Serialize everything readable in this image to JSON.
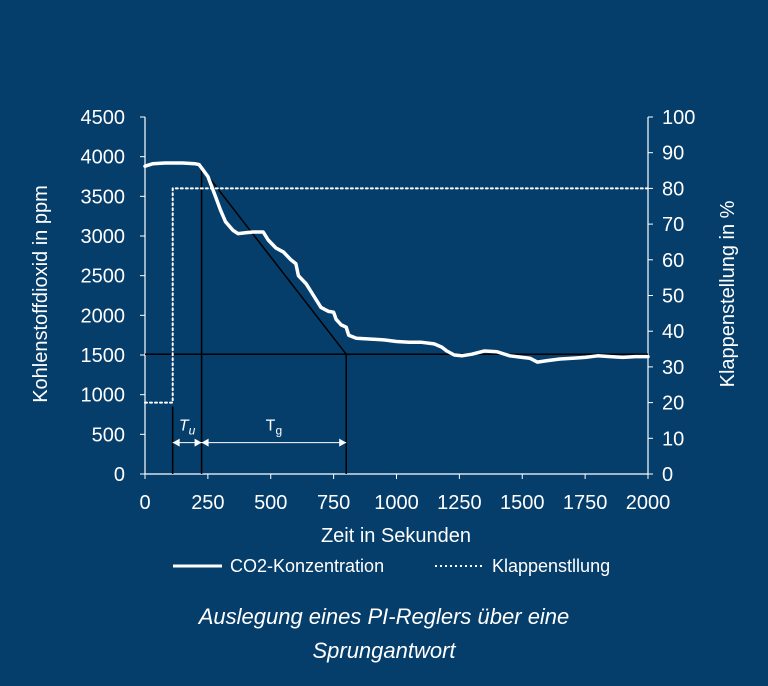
{
  "chart_data": {
    "type": "line",
    "xlabel": "Zeit in Sekunden",
    "ylabel": "Kohlenstoffdioxid in ppm",
    "y2label": "Klappenstellung in %",
    "xlim": [
      0,
      2000
    ],
    "ylim": [
      0,
      4500
    ],
    "y2lim": [
      0,
      100
    ],
    "xticks": [
      "0",
      "250",
      "500",
      "750",
      "1000",
      "1250",
      "1500",
      "1750",
      "2000"
    ],
    "yticks": [
      "0",
      "500",
      "1000",
      "1500",
      "2000",
      "2500",
      "3000",
      "3500",
      "4000",
      "4500"
    ],
    "y2ticks": [
      "0",
      "10",
      "20",
      "30",
      "40",
      "50",
      "60",
      "70",
      "80",
      "90",
      "100"
    ],
    "grid": false,
    "legend_position": "bottom",
    "series": [
      {
        "name": "CO2-Konzentration",
        "axis": "left",
        "style": "solid",
        "points": [
          [
            0,
            3880
          ],
          [
            30,
            3910
          ],
          [
            80,
            3920
          ],
          [
            150,
            3920
          ],
          [
            200,
            3910
          ],
          [
            215,
            3900
          ],
          [
            250,
            3750
          ],
          [
            280,
            3500
          ],
          [
            300,
            3330
          ],
          [
            320,
            3180
          ],
          [
            350,
            3070
          ],
          [
            370,
            3030
          ],
          [
            400,
            3040
          ],
          [
            430,
            3050
          ],
          [
            470,
            3050
          ],
          [
            490,
            2950
          ],
          [
            520,
            2850
          ],
          [
            550,
            2800
          ],
          [
            580,
            2700
          ],
          [
            600,
            2650
          ],
          [
            610,
            2500
          ],
          [
            640,
            2400
          ],
          [
            660,
            2300
          ],
          [
            680,
            2200
          ],
          [
            700,
            2100
          ],
          [
            730,
            2050
          ],
          [
            750,
            2040
          ],
          [
            760,
            1950
          ],
          [
            780,
            1880
          ],
          [
            800,
            1850
          ],
          [
            810,
            1750
          ],
          [
            840,
            1710
          ],
          [
            900,
            1700
          ],
          [
            950,
            1690
          ],
          [
            1000,
            1670
          ],
          [
            1050,
            1660
          ],
          [
            1100,
            1660
          ],
          [
            1150,
            1640
          ],
          [
            1180,
            1600
          ],
          [
            1200,
            1550
          ],
          [
            1230,
            1500
          ],
          [
            1260,
            1490
          ],
          [
            1300,
            1510
          ],
          [
            1350,
            1550
          ],
          [
            1400,
            1540
          ],
          [
            1450,
            1490
          ],
          [
            1500,
            1470
          ],
          [
            1530,
            1460
          ],
          [
            1560,
            1410
          ],
          [
            1600,
            1430
          ],
          [
            1650,
            1450
          ],
          [
            1700,
            1460
          ],
          [
            1750,
            1470
          ],
          [
            1800,
            1490
          ],
          [
            1850,
            1480
          ],
          [
            1900,
            1470
          ],
          [
            1950,
            1480
          ],
          [
            2000,
            1480
          ]
        ]
      },
      {
        "name": "Klappenstllung",
        "axis": "right",
        "style": "dotted",
        "points": [
          [
            0,
            20
          ],
          [
            110,
            20
          ],
          [
            110,
            80
          ],
          [
            2000,
            80
          ]
        ]
      }
    ],
    "annotations": {
      "tangent": [
        [
          215,
          3900
        ],
        [
          800,
          1510
        ]
      ],
      "final_value_line": [
        [
          0,
          1510
        ],
        [
          2000,
          1510
        ]
      ],
      "vertical_lines": [
        {
          "x": 110,
          "y_top": 850
        },
        {
          "x": 225,
          "y_top": 3900
        },
        {
          "x": 800,
          "y_top": 1510
        }
      ],
      "tu": {
        "label": "T",
        "sub": "u",
        "x_from": 110,
        "x_to": 225,
        "y": 420
      },
      "tg": {
        "label": "T",
        "sub": "g",
        "x_from": 225,
        "x_to": 800,
        "y": 420
      }
    }
  },
  "caption": {
    "line1": "Auslegung eines PI-Reglers über eine",
    "line2": "Sprungantwort"
  },
  "colors": {
    "background": "#053d6b",
    "foreground": "#ffffff",
    "annotation": "#000000"
  }
}
